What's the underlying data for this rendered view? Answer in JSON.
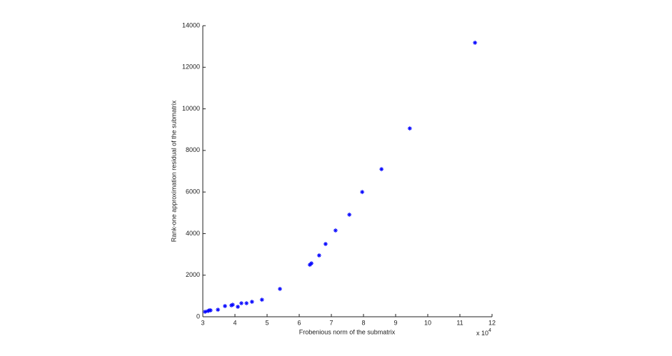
{
  "chart_data": {
    "type": "scatter",
    "xlabel": "Frobenious norm of the submatrix",
    "ylabel": "Rank-one approximation residual of the submatrix",
    "x_multiplier": {
      "base": "x 10",
      "exponent": "4"
    },
    "color": "#0000ff",
    "x": [
      3.07,
      3.16,
      3.2,
      3.24,
      3.47,
      3.69,
      3.89,
      3.93,
      4.09,
      4.2,
      4.36,
      4.53,
      4.84,
      5.4,
      6.33,
      6.38,
      6.62,
      6.82,
      7.13,
      7.56,
      7.96,
      8.56,
      9.44,
      11.47
    ],
    "values": [
      240,
      275,
      310,
      310,
      340,
      515,
      550,
      580,
      480,
      650,
      650,
      720,
      820,
      1340,
      2500,
      2570,
      2950,
      3500,
      4150,
      4910,
      6000,
      7100,
      9060,
      13180
    ],
    "xlim": [
      3,
      12
    ],
    "xticks": [
      3,
      4,
      5,
      6,
      7,
      8,
      9,
      10,
      11,
      12
    ],
    "ylim": [
      0,
      14000
    ],
    "yticks": [
      0,
      2000,
      4000,
      6000,
      8000,
      10000,
      12000,
      14000
    ]
  }
}
